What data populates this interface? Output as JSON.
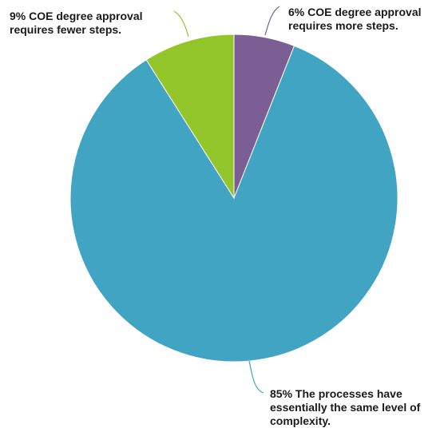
{
  "chart_data": {
    "type": "pie",
    "slices": [
      {
        "label_lines": [
          "6% COE degree approval",
          "requires more steps."
        ],
        "value": 6,
        "color": "#7b5e93"
      },
      {
        "label_lines": [
          "85% The processes have",
          "essentially the same level of",
          "complexity."
        ],
        "value": 85,
        "color": "#41a4c3"
      },
      {
        "label_lines": [
          "9% COE degree approval",
          "requires fewer steps."
        ],
        "value": 9,
        "color": "#93c62b"
      }
    ],
    "start": "top",
    "direction": "clockwise",
    "legend": "none",
    "leader_lines": true
  }
}
